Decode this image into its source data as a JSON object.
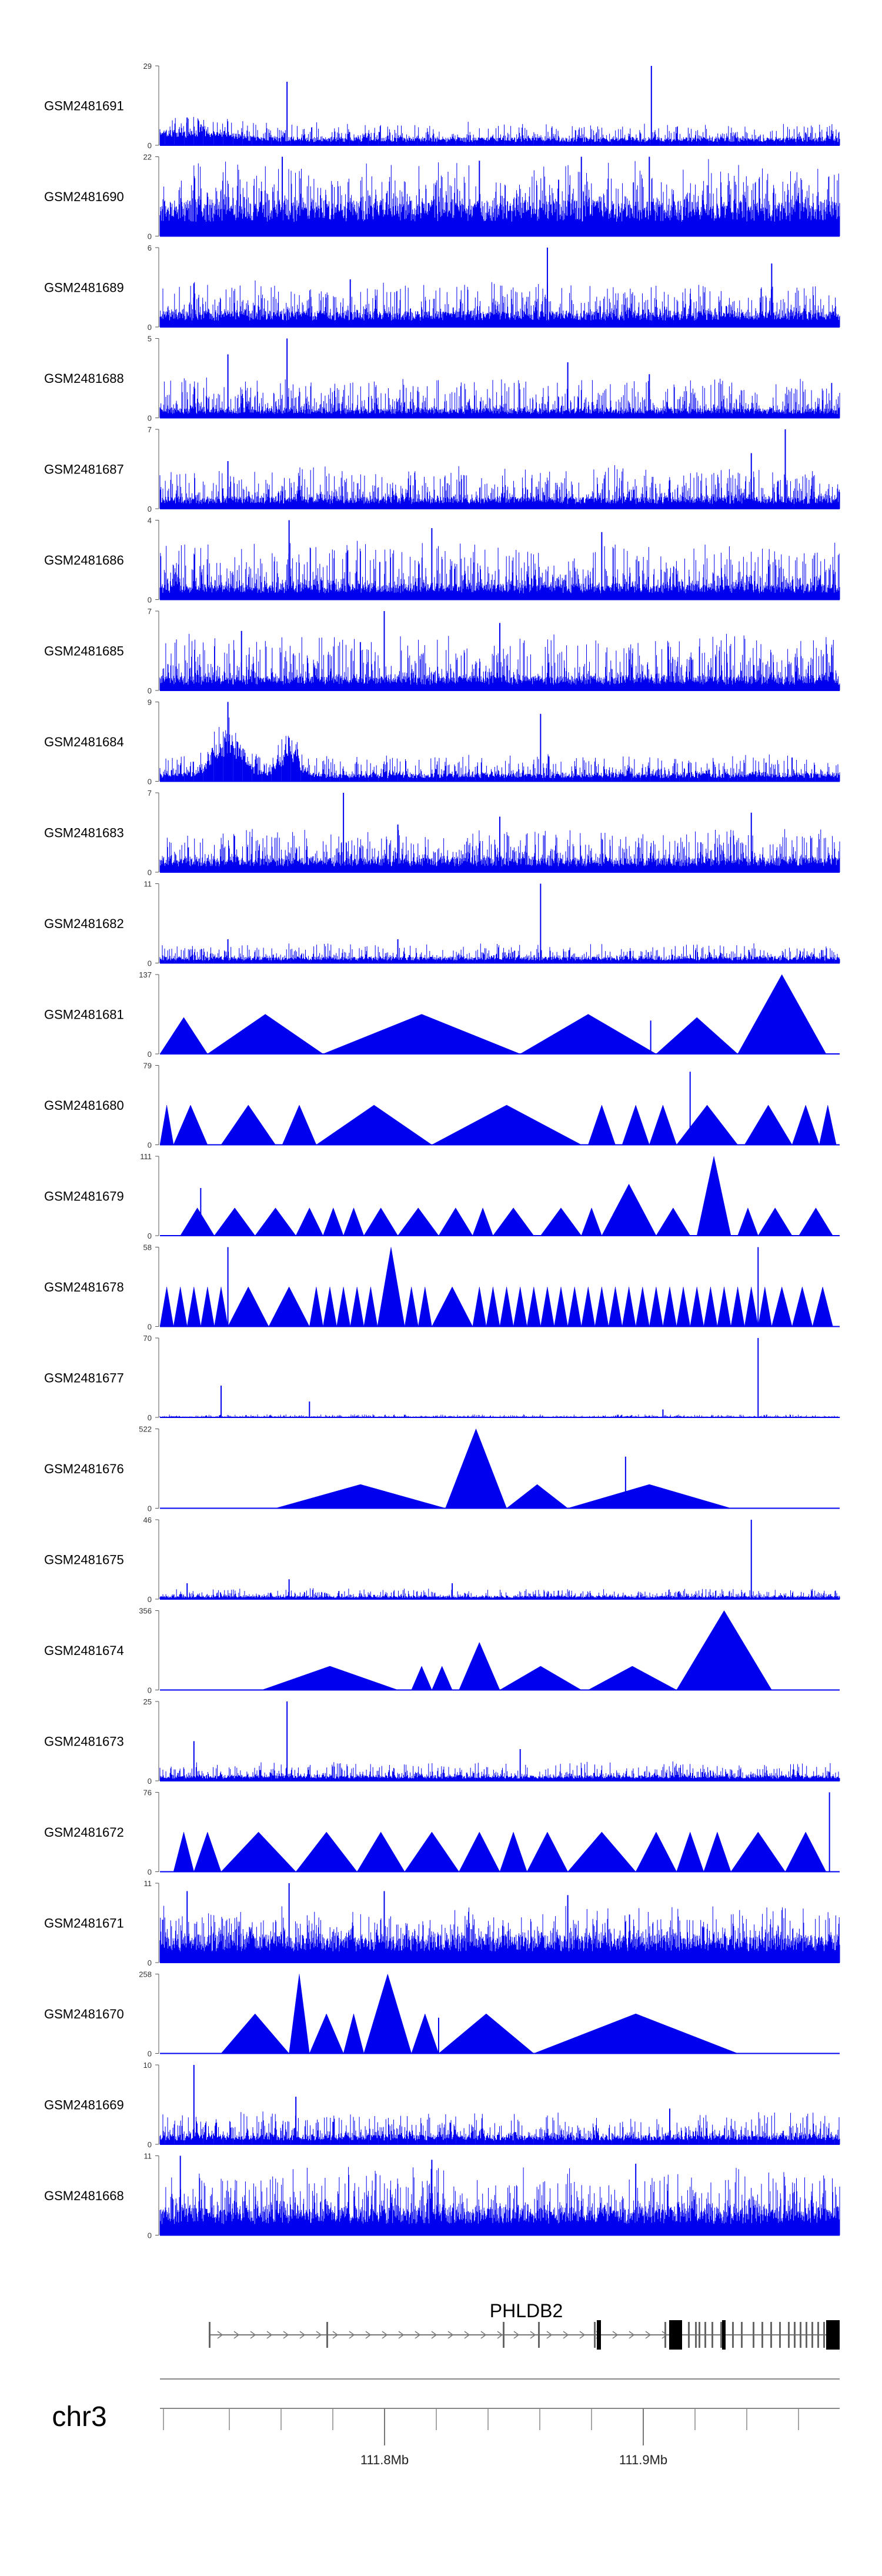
{
  "chart_data": {
    "type": "area",
    "chromosome": "chr3",
    "gene": "PHLDB2",
    "x_ticks": [
      {
        "label": "111.8Mb"
      },
      {
        "label": "111.9Mb"
      }
    ],
    "tracks": [
      {
        "name": "GSM2481691",
        "ymax": 29,
        "style": "spiky",
        "mean": 0.1,
        "amp": 0.2,
        "peaks": [
          [
            0.04,
            0.35
          ],
          [
            0.187,
            0.8
          ],
          [
            0.723,
            1.0
          ],
          [
            0.095,
            0.18
          ]
        ],
        "hills": [
          [
            0.03,
            0.09,
            0.12
          ]
        ]
      },
      {
        "name": "GSM2481690",
        "ymax": 22,
        "style": "dense",
        "mean": 0.45,
        "amp": 0.55,
        "peaks": [
          [
            0.18,
            1.0
          ],
          [
            0.47,
            0.95
          ],
          [
            0.62,
            1.0
          ],
          [
            0.72,
            1.0
          ]
        ],
        "hills": []
      },
      {
        "name": "GSM2481689",
        "ymax": 6,
        "style": "dense",
        "mean": 0.2,
        "amp": 0.4,
        "peaks": [
          [
            0.57,
            1.0
          ],
          [
            0.9,
            0.8
          ],
          [
            0.05,
            0.55
          ],
          [
            0.28,
            0.6
          ]
        ],
        "hills": []
      },
      {
        "name": "GSM2481688",
        "ymax": 5,
        "style": "dense",
        "mean": 0.12,
        "amp": 0.4,
        "peaks": [
          [
            0.187,
            1.0
          ],
          [
            0.1,
            0.8
          ],
          [
            0.6,
            0.7
          ],
          [
            0.72,
            0.55
          ]
        ],
        "hills": []
      },
      {
        "name": "GSM2481687",
        "ymax": 7,
        "style": "dense",
        "mean": 0.15,
        "amp": 0.4,
        "peaks": [
          [
            0.92,
            1.0
          ],
          [
            0.87,
            0.7
          ],
          [
            0.1,
            0.6
          ]
        ],
        "hills": []
      },
      {
        "name": "GSM2481686",
        "ymax": 4,
        "style": "dense",
        "mean": 0.2,
        "amp": 0.55,
        "peaks": [
          [
            0.19,
            1.0
          ],
          [
            0.4,
            0.9
          ],
          [
            0.65,
            0.85
          ]
        ],
        "hills": []
      },
      {
        "name": "GSM2481685",
        "ymax": 7,
        "style": "dense",
        "mean": 0.18,
        "amp": 0.55,
        "peaks": [
          [
            0.33,
            1.0
          ],
          [
            0.5,
            0.85
          ],
          [
            0.12,
            0.75
          ]
        ],
        "hills": []
      },
      {
        "name": "GSM2481684",
        "ymax": 9,
        "style": "spiky",
        "mean": 0.1,
        "amp": 0.25,
        "peaks": [
          [
            0.1,
            1.0
          ],
          [
            0.19,
            0.55
          ],
          [
            0.56,
            0.85
          ],
          [
            0.93,
            0.3
          ]
        ],
        "hills": [
          [
            0.1,
            0.03,
            0.6
          ],
          [
            0.19,
            0.02,
            0.4
          ]
        ]
      },
      {
        "name": "GSM2481683",
        "ymax": 7,
        "style": "dense",
        "mean": 0.18,
        "amp": 0.4,
        "peaks": [
          [
            0.27,
            1.0
          ],
          [
            0.5,
            0.7
          ],
          [
            0.87,
            0.75
          ],
          [
            0.35,
            0.6
          ]
        ],
        "hills": []
      },
      {
        "name": "GSM2481682",
        "ymax": 11,
        "style": "spiky",
        "mean": 0.08,
        "amp": 0.18,
        "peaks": [
          [
            0.56,
            1.0
          ],
          [
            0.1,
            0.3
          ],
          [
            0.35,
            0.3
          ]
        ],
        "hills": []
      },
      {
        "name": "GSM2481681",
        "ymax": 137,
        "style": "tri",
        "mean": 0,
        "amp": 0,
        "peaks": [
          [
            0.722,
            0.42
          ]
        ],
        "hills": [],
        "tri": [
          [
            0.0,
            0.07,
            0.46
          ],
          [
            0.07,
            0.24,
            0.5
          ],
          [
            0.24,
            0.53,
            0.5
          ],
          [
            0.53,
            0.73,
            0.5
          ],
          [
            0.73,
            0.85,
            0.46
          ],
          [
            0.85,
            0.98,
            1.0
          ]
        ]
      },
      {
        "name": "GSM2481680",
        "ymax": 79,
        "style": "tri",
        "mean": 0,
        "amp": 0,
        "peaks": [
          [
            0.78,
            0.92
          ]
        ],
        "hills": [],
        "tri": [
          [
            0.0,
            0.02,
            0.5
          ],
          [
            0.02,
            0.07,
            0.5
          ],
          [
            0.09,
            0.17,
            0.5
          ],
          [
            0.18,
            0.23,
            0.5
          ],
          [
            0.23,
            0.4,
            0.5
          ],
          [
            0.4,
            0.62,
            0.5
          ],
          [
            0.63,
            0.67,
            0.5
          ],
          [
            0.68,
            0.72,
            0.5
          ],
          [
            0.72,
            0.76,
            0.5
          ],
          [
            0.76,
            0.85,
            0.5
          ],
          [
            0.86,
            0.93,
            0.5
          ],
          [
            0.93,
            0.97,
            0.5
          ],
          [
            0.97,
            0.995,
            0.5
          ]
        ]
      },
      {
        "name": "GSM2481679",
        "ymax": 111,
        "style": "tri",
        "mean": 0,
        "amp": 0,
        "peaks": [
          [
            0.06,
            0.6
          ]
        ],
        "hills": [],
        "tri": [
          [
            0.03,
            0.08,
            0.35
          ],
          [
            0.08,
            0.14,
            0.35
          ],
          [
            0.14,
            0.2,
            0.35
          ],
          [
            0.2,
            0.24,
            0.35
          ],
          [
            0.24,
            0.27,
            0.35
          ],
          [
            0.27,
            0.3,
            0.35
          ],
          [
            0.3,
            0.35,
            0.35
          ],
          [
            0.35,
            0.41,
            0.35
          ],
          [
            0.41,
            0.46,
            0.35
          ],
          [
            0.46,
            0.49,
            0.35
          ],
          [
            0.49,
            0.55,
            0.35
          ],
          [
            0.56,
            0.62,
            0.35
          ],
          [
            0.62,
            0.65,
            0.35
          ],
          [
            0.65,
            0.73,
            0.65
          ],
          [
            0.73,
            0.78,
            0.35
          ],
          [
            0.79,
            0.84,
            1.0
          ],
          [
            0.85,
            0.88,
            0.35
          ],
          [
            0.88,
            0.93,
            0.35
          ],
          [
            0.94,
            0.99,
            0.35
          ]
        ]
      },
      {
        "name": "GSM2481678",
        "ymax": 58,
        "style": "tri",
        "mean": 0,
        "amp": 0,
        "peaks": [
          [
            0.1,
            1.0
          ],
          [
            0.88,
            1.0
          ]
        ],
        "hills": [],
        "tri": [
          [
            0.0,
            0.02,
            0.5
          ],
          [
            0.02,
            0.04,
            0.5
          ],
          [
            0.04,
            0.06,
            0.5
          ],
          [
            0.06,
            0.08,
            0.5
          ],
          [
            0.08,
            0.1,
            0.5
          ],
          [
            0.1,
            0.16,
            0.5
          ],
          [
            0.16,
            0.22,
            0.5
          ],
          [
            0.22,
            0.24,
            0.5
          ],
          [
            0.24,
            0.26,
            0.5
          ],
          [
            0.26,
            0.28,
            0.5
          ],
          [
            0.28,
            0.3,
            0.5
          ],
          [
            0.3,
            0.32,
            0.5
          ],
          [
            0.32,
            0.36,
            1.0
          ],
          [
            0.36,
            0.38,
            0.5
          ],
          [
            0.38,
            0.4,
            0.5
          ],
          [
            0.4,
            0.46,
            0.5
          ],
          [
            0.46,
            0.48,
            0.5
          ],
          [
            0.48,
            0.5,
            0.5
          ],
          [
            0.5,
            0.52,
            0.5
          ],
          [
            0.52,
            0.54,
            0.5
          ],
          [
            0.54,
            0.56,
            0.5
          ],
          [
            0.56,
            0.58,
            0.5
          ],
          [
            0.58,
            0.6,
            0.5
          ],
          [
            0.6,
            0.62,
            0.5
          ],
          [
            0.62,
            0.64,
            0.5
          ],
          [
            0.64,
            0.66,
            0.5
          ],
          [
            0.66,
            0.68,
            0.5
          ],
          [
            0.68,
            0.7,
            0.5
          ],
          [
            0.7,
            0.72,
            0.5
          ],
          [
            0.72,
            0.74,
            0.5
          ],
          [
            0.74,
            0.76,
            0.5
          ],
          [
            0.76,
            0.78,
            0.5
          ],
          [
            0.78,
            0.8,
            0.5
          ],
          [
            0.8,
            0.82,
            0.5
          ],
          [
            0.82,
            0.84,
            0.5
          ],
          [
            0.84,
            0.86,
            0.5
          ],
          [
            0.86,
            0.88,
            0.5
          ],
          [
            0.88,
            0.9,
            0.5
          ],
          [
            0.9,
            0.93,
            0.5
          ],
          [
            0.93,
            0.96,
            0.5
          ],
          [
            0.96,
            0.99,
            0.5
          ]
        ]
      },
      {
        "name": "GSM2481677",
        "ymax": 70,
        "style": "spiky",
        "mean": 0.01,
        "amp": 0.03,
        "peaks": [
          [
            0.88,
            1.0
          ],
          [
            0.09,
            0.4
          ],
          [
            0.22,
            0.2
          ],
          [
            0.74,
            0.1
          ]
        ],
        "hills": []
      },
      {
        "name": "GSM2481676",
        "ymax": 522,
        "style": "tri",
        "mean": 0,
        "amp": 0,
        "peaks": [
          [
            0.685,
            0.65
          ]
        ],
        "hills": [],
        "tri": [
          [
            0.17,
            0.42,
            0.3
          ],
          [
            0.42,
            0.51,
            1.0
          ],
          [
            0.51,
            0.6,
            0.3
          ],
          [
            0.6,
            0.84,
            0.3
          ]
        ]
      },
      {
        "name": "GSM2481675",
        "ymax": 46,
        "style": "spiky",
        "mean": 0.04,
        "amp": 0.1,
        "peaks": [
          [
            0.87,
            1.0
          ],
          [
            0.04,
            0.2
          ],
          [
            0.19,
            0.25
          ],
          [
            0.43,
            0.2
          ]
        ],
        "hills": []
      },
      {
        "name": "GSM2481674",
        "ymax": 356,
        "style": "tri",
        "mean": 0,
        "amp": 0,
        "peaks": [],
        "hills": [],
        "tri": [
          [
            0.15,
            0.35,
            0.3
          ],
          [
            0.37,
            0.4,
            0.3
          ],
          [
            0.4,
            0.43,
            0.3
          ],
          [
            0.44,
            0.5,
            0.6
          ],
          [
            0.5,
            0.62,
            0.3
          ],
          [
            0.63,
            0.76,
            0.3
          ],
          [
            0.76,
            0.9,
            1.0
          ]
        ]
      },
      {
        "name": "GSM2481673",
        "ymax": 25,
        "style": "spiky",
        "mean": 0.07,
        "amp": 0.18,
        "peaks": [
          [
            0.187,
            1.0
          ],
          [
            0.05,
            0.5
          ],
          [
            0.53,
            0.4
          ]
        ],
        "hills": []
      },
      {
        "name": "GSM2481672",
        "ymax": 76,
        "style": "tri",
        "mean": 0,
        "amp": 0,
        "peaks": [
          [
            0.985,
            1.0
          ]
        ],
        "hills": [],
        "tri": [
          [
            0.02,
            0.05,
            0.5
          ],
          [
            0.05,
            0.09,
            0.5
          ],
          [
            0.09,
            0.2,
            0.5
          ],
          [
            0.2,
            0.29,
            0.5
          ],
          [
            0.29,
            0.36,
            0.5
          ],
          [
            0.36,
            0.44,
            0.5
          ],
          [
            0.44,
            0.5,
            0.5
          ],
          [
            0.5,
            0.54,
            0.5
          ],
          [
            0.54,
            0.6,
            0.5
          ],
          [
            0.6,
            0.7,
            0.5
          ],
          [
            0.7,
            0.76,
            0.5
          ],
          [
            0.76,
            0.8,
            0.5
          ],
          [
            0.8,
            0.84,
            0.5
          ],
          [
            0.84,
            0.92,
            0.5
          ],
          [
            0.92,
            0.98,
            0.5
          ]
        ]
      },
      {
        "name": "GSM2481671",
        "ymax": 11,
        "style": "dense",
        "mean": 0.35,
        "amp": 0.4,
        "peaks": [
          [
            0.19,
            1.0
          ],
          [
            0.04,
            0.9
          ],
          [
            0.33,
            0.9
          ],
          [
            0.6,
            0.85
          ]
        ],
        "hills": []
      },
      {
        "name": "GSM2481670",
        "ymax": 258,
        "style": "tri",
        "mean": 0,
        "amp": 0,
        "peaks": [
          [
            0.41,
            0.45
          ]
        ],
        "hills": [],
        "tri": [
          [
            0.09,
            0.19,
            0.5
          ],
          [
            0.19,
            0.22,
            1.0
          ],
          [
            0.22,
            0.27,
            0.5
          ],
          [
            0.27,
            0.3,
            0.5
          ],
          [
            0.3,
            0.37,
            1.0
          ],
          [
            0.37,
            0.41,
            0.5
          ],
          [
            0.41,
            0.55,
            0.5
          ],
          [
            0.55,
            0.85,
            0.5
          ]
        ]
      },
      {
        "name": "GSM2481669",
        "ymax": 10,
        "style": "spiky",
        "mean": 0.12,
        "amp": 0.3,
        "peaks": [
          [
            0.05,
            1.0
          ],
          [
            0.2,
            0.6
          ],
          [
            0.75,
            0.45
          ]
        ],
        "hills": []
      },
      {
        "name": "GSM2481668",
        "ymax": 11,
        "style": "dense",
        "mean": 0.35,
        "amp": 0.55,
        "peaks": [
          [
            0.03,
            1.0
          ],
          [
            0.4,
            0.95
          ],
          [
            0.7,
            0.9
          ]
        ],
        "hills": []
      }
    ]
  }
}
